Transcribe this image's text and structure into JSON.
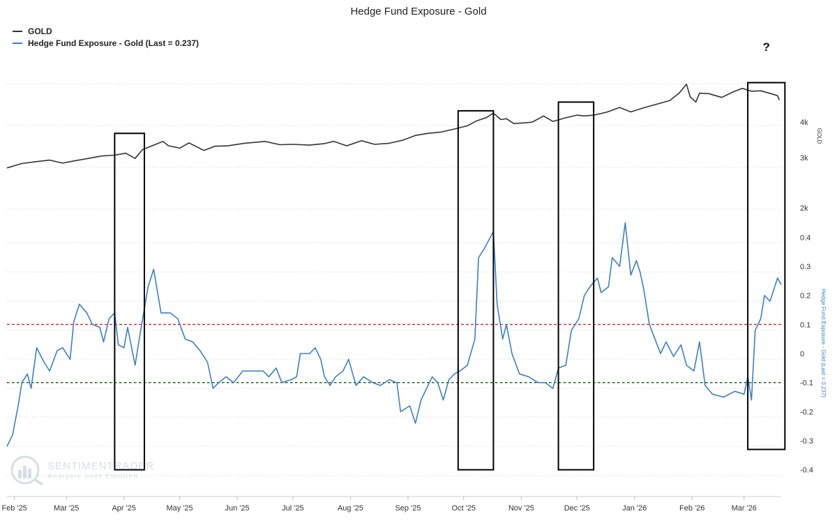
{
  "chart_data": {
    "type": "line",
    "title": "Hedge Fund Exposure - Gold",
    "legend_position": "top-left",
    "x_ticks": [
      "Feb '25",
      "Mar '25",
      "Apr '25",
      "May '25",
      "Jun '25",
      "Jul '25",
      "Aug '25",
      "Sep '25",
      "Oct '25",
      "Nov '25",
      "Dec '25",
      "Jan '26",
      "Feb '26",
      "Mar '26"
    ],
    "x_range": [
      "2025-01-28",
      "2026-03-21"
    ],
    "grid": "horizontal dotted",
    "series": [
      {
        "name": "GOLD",
        "color": "#333333",
        "axis": "right-upper",
        "axis_label": "GOLD",
        "scale": "log",
        "ylim": [
          1500,
          5500
        ],
        "points": [
          [
            "2025-01-28",
            2760
          ],
          [
            "2025-02-05",
            2860
          ],
          [
            "2025-02-12",
            2900
          ],
          [
            "2025-02-20",
            2940
          ],
          [
            "2025-02-27",
            2870
          ],
          [
            "2025-03-05",
            2920
          ],
          [
            "2025-03-14",
            2990
          ],
          [
            "2025-03-20",
            3040
          ],
          [
            "2025-03-27",
            3060
          ],
          [
            "2025-04-02",
            3110
          ],
          [
            "2025-04-07",
            2980
          ],
          [
            "2025-04-11",
            3200
          ],
          [
            "2025-04-17",
            3320
          ],
          [
            "2025-04-22",
            3420
          ],
          [
            "2025-04-25",
            3300
          ],
          [
            "2025-05-01",
            3240
          ],
          [
            "2025-05-06",
            3380
          ],
          [
            "2025-05-14",
            3180
          ],
          [
            "2025-05-20",
            3290
          ],
          [
            "2025-05-27",
            3300
          ],
          [
            "2025-06-05",
            3370
          ],
          [
            "2025-06-12",
            3400
          ],
          [
            "2025-06-16",
            3420
          ],
          [
            "2025-06-24",
            3330
          ],
          [
            "2025-07-01",
            3340
          ],
          [
            "2025-07-10",
            3320
          ],
          [
            "2025-07-18",
            3360
          ],
          [
            "2025-07-23",
            3420
          ],
          [
            "2025-07-30",
            3300
          ],
          [
            "2025-08-07",
            3440
          ],
          [
            "2025-08-14",
            3340
          ],
          [
            "2025-08-22",
            3370
          ],
          [
            "2025-08-29",
            3450
          ],
          [
            "2025-09-05",
            3590
          ],
          [
            "2025-09-12",
            3650
          ],
          [
            "2025-09-19",
            3690
          ],
          [
            "2025-09-26",
            3780
          ],
          [
            "2025-10-03",
            3880
          ],
          [
            "2025-10-08",
            4040
          ],
          [
            "2025-10-13",
            4140
          ],
          [
            "2025-10-17",
            4300
          ],
          [
            "2025-10-21",
            4080
          ],
          [
            "2025-10-24",
            4110
          ],
          [
            "2025-10-28",
            3950
          ],
          [
            "2025-11-04",
            3980
          ],
          [
            "2025-11-07",
            4000
          ],
          [
            "2025-11-13",
            4200
          ],
          [
            "2025-11-18",
            4020
          ],
          [
            "2025-11-25",
            4140
          ],
          [
            "2025-12-01",
            4230
          ],
          [
            "2025-12-05",
            4200
          ],
          [
            "2025-12-10",
            4230
          ],
          [
            "2025-12-17",
            4330
          ],
          [
            "2025-12-24",
            4500
          ],
          [
            "2025-12-30",
            4340
          ],
          [
            "2026-01-06",
            4490
          ],
          [
            "2026-01-13",
            4620
          ],
          [
            "2026-01-20",
            4760
          ],
          [
            "2026-01-25",
            5050
          ],
          [
            "2026-01-29",
            5430
          ],
          [
            "2026-01-31",
            4900
          ],
          [
            "2026-02-03",
            4700
          ],
          [
            "2026-02-05",
            5050
          ],
          [
            "2026-02-10",
            5030
          ],
          [
            "2026-02-17",
            4880
          ],
          [
            "2026-02-23",
            5100
          ],
          [
            "2026-02-28",
            5250
          ],
          [
            "2026-03-05",
            5130
          ],
          [
            "2026-03-10",
            5150
          ],
          [
            "2026-03-16",
            5020
          ],
          [
            "2026-03-19",
            4950
          ],
          [
            "2026-03-20",
            4780
          ]
        ]
      },
      {
        "name": "Hedge Fund Exposure - Gold (Last = 0.237)",
        "color": "#3a7fc9",
        "axis": "right-lower",
        "axis_label": "Hedge Fund Exposure - Gold (Last = 0.237)",
        "ylim": [
          -0.4,
          0.4
        ],
        "points": [
          [
            "2025-01-28",
            -0.32
          ],
          [
            "2025-01-31",
            -0.28
          ],
          [
            "2025-02-03",
            -0.18
          ],
          [
            "2025-02-05",
            -0.1
          ],
          [
            "2025-02-08",
            -0.07
          ],
          [
            "2025-02-10",
            -0.12
          ],
          [
            "2025-02-13",
            0.02
          ],
          [
            "2025-02-17",
            -0.03
          ],
          [
            "2025-02-20",
            -0.06
          ],
          [
            "2025-02-24",
            0.01
          ],
          [
            "2025-02-27",
            0.02
          ],
          [
            "2025-03-03",
            -0.02
          ],
          [
            "2025-03-05",
            0.11
          ],
          [
            "2025-03-08",
            0.17
          ],
          [
            "2025-03-12",
            0.14
          ],
          [
            "2025-03-15",
            0.1
          ],
          [
            "2025-03-19",
            0.09
          ],
          [
            "2025-03-21",
            0.04
          ],
          [
            "2025-03-24",
            0.12
          ],
          [
            "2025-03-27",
            0.14
          ],
          [
            "2025-03-29",
            0.03
          ],
          [
            "2025-04-01",
            0.02
          ],
          [
            "2025-04-03",
            0.09
          ],
          [
            "2025-04-07",
            -0.04
          ],
          [
            "2025-04-10",
            0.08
          ],
          [
            "2025-04-14",
            0.23
          ],
          [
            "2025-04-17",
            0.29
          ],
          [
            "2025-04-21",
            0.14
          ],
          [
            "2025-04-26",
            0.14
          ],
          [
            "2025-04-30",
            0.12
          ],
          [
            "2025-05-04",
            0.05
          ],
          [
            "2025-05-08",
            0.04
          ],
          [
            "2025-05-12",
            0.01
          ],
          [
            "2025-05-16",
            -0.03
          ],
          [
            "2025-05-19",
            -0.12
          ],
          [
            "2025-05-22",
            -0.1
          ],
          [
            "2025-05-26",
            -0.08
          ],
          [
            "2025-05-30",
            -0.1
          ],
          [
            "2025-06-04",
            -0.06
          ],
          [
            "2025-06-10",
            -0.06
          ],
          [
            "2025-06-15",
            -0.06
          ],
          [
            "2025-06-18",
            -0.08
          ],
          [
            "2025-06-22",
            -0.05
          ],
          [
            "2025-06-25",
            -0.1
          ],
          [
            "2025-06-30",
            -0.09
          ],
          [
            "2025-07-03",
            -0.08
          ],
          [
            "2025-07-05",
            0.0
          ],
          [
            "2025-07-10",
            0.0
          ],
          [
            "2025-07-13",
            0.02
          ],
          [
            "2025-07-16",
            -0.02
          ],
          [
            "2025-07-18",
            -0.08
          ],
          [
            "2025-07-21",
            -0.11
          ],
          [
            "2025-07-24",
            -0.08
          ],
          [
            "2025-07-28",
            -0.06
          ],
          [
            "2025-07-31",
            -0.02
          ],
          [
            "2025-08-04",
            -0.11
          ],
          [
            "2025-08-08",
            -0.08
          ],
          [
            "2025-08-13",
            -0.1
          ],
          [
            "2025-08-17",
            -0.11
          ],
          [
            "2025-08-22",
            -0.09
          ],
          [
            "2025-08-26",
            -0.1
          ],
          [
            "2025-08-28",
            -0.2
          ],
          [
            "2025-09-02",
            -0.18
          ],
          [
            "2025-09-05",
            -0.24
          ],
          [
            "2025-09-08",
            -0.16
          ],
          [
            "2025-09-11",
            -0.12
          ],
          [
            "2025-09-14",
            -0.08
          ],
          [
            "2025-09-17",
            -0.1
          ],
          [
            "2025-09-20",
            -0.16
          ],
          [
            "2025-09-23",
            -0.09
          ],
          [
            "2025-09-26",
            -0.07
          ],
          [
            "2025-09-29",
            -0.06
          ],
          [
            "2025-10-03",
            -0.04
          ],
          [
            "2025-10-07",
            0.05
          ],
          [
            "2025-10-09",
            0.33
          ],
          [
            "2025-10-12",
            0.36
          ],
          [
            "2025-10-17",
            0.42
          ],
          [
            "2025-10-19",
            0.17
          ],
          [
            "2025-10-22",
            0.05
          ],
          [
            "2025-10-24",
            0.1
          ],
          [
            "2025-10-27",
            0.0
          ],
          [
            "2025-10-31",
            -0.07
          ],
          [
            "2025-11-05",
            -0.08
          ],
          [
            "2025-11-10",
            -0.1
          ],
          [
            "2025-11-14",
            -0.1
          ],
          [
            "2025-11-18",
            -0.12
          ],
          [
            "2025-11-21",
            -0.05
          ],
          [
            "2025-11-25",
            -0.04
          ],
          [
            "2025-11-28",
            0.08
          ],
          [
            "2025-12-02",
            0.12
          ],
          [
            "2025-12-05",
            0.2
          ],
          [
            "2025-12-08",
            0.23
          ],
          [
            "2025-12-12",
            0.26
          ],
          [
            "2025-12-14",
            0.21
          ],
          [
            "2025-12-18",
            0.23
          ],
          [
            "2025-12-20",
            0.33
          ],
          [
            "2025-12-24",
            0.3
          ],
          [
            "2025-12-27",
            0.45
          ],
          [
            "2025-12-30",
            0.27
          ],
          [
            "2026-01-02",
            0.32
          ],
          [
            "2026-01-04",
            0.28
          ],
          [
            "2026-01-06",
            0.22
          ],
          [
            "2026-01-09",
            0.1
          ],
          [
            "2026-01-12",
            0.05
          ],
          [
            "2026-01-15",
            0.0
          ],
          [
            "2026-01-18",
            0.04
          ],
          [
            "2026-01-22",
            -0.01
          ],
          [
            "2026-01-26",
            0.03
          ],
          [
            "2026-01-29",
            -0.04
          ],
          [
            "2026-02-02",
            -0.06
          ],
          [
            "2026-02-05",
            0.04
          ],
          [
            "2026-02-08",
            -0.11
          ],
          [
            "2026-02-12",
            -0.14
          ],
          [
            "2026-02-18",
            -0.15
          ],
          [
            "2026-02-24",
            -0.13
          ],
          [
            "2026-03-01",
            -0.14
          ],
          [
            "2026-03-03",
            -0.08
          ],
          [
            "2026-03-05",
            -0.16
          ],
          [
            "2026-03-07",
            0.08
          ],
          [
            "2026-03-10",
            0.12
          ],
          [
            "2026-03-12",
            0.2
          ],
          [
            "2026-03-15",
            0.18
          ],
          [
            "2026-03-19",
            0.26
          ],
          [
            "2026-03-21",
            0.237
          ]
        ]
      }
    ],
    "right_axis_upper": {
      "labels": [
        "2k",
        "3k",
        "4k"
      ],
      "values": [
        2000,
        3000,
        4000
      ]
    },
    "right_axis_lower": {
      "labels": [
        "-0.4",
        "-0.3",
        "-0.2",
        "-0.1",
        "0",
        "0.1",
        "0.2",
        "0.3",
        "0.4"
      ],
      "values": [
        -0.4,
        -0.3,
        -0.2,
        -0.1,
        0,
        0.1,
        0.2,
        0.3,
        0.4
      ]
    },
    "reference_lines": [
      {
        "value": 0.1,
        "color": "#d62728",
        "style": "dashed"
      },
      {
        "value": -0.1,
        "color": "#2ca02c",
        "style": "dashed"
      }
    ],
    "highlight_boxes": [
      {
        "start": "2025-03-27",
        "end": "2025-04-12",
        "top_gold": 3650,
        "bottom_exposure": -0.4
      },
      {
        "start": "2025-09-28",
        "end": "2025-10-17",
        "top_gold": 4380,
        "bottom_exposure": -0.4
      },
      {
        "start": "2025-11-21",
        "end": "2025-12-10",
        "top_gold": 4700,
        "bottom_exposure": -0.4
      },
      {
        "start": "2026-03-03",
        "end": "2026-03-23",
        "top_gold": 5500,
        "bottom_exposure": -0.33
      }
    ],
    "annotations": [
      {
        "text": "?",
        "date": "2026-03-13"
      }
    ]
  },
  "watermark": {
    "brand": "SENTIMENTRADER",
    "tagline": "Analysis over Emotion"
  }
}
